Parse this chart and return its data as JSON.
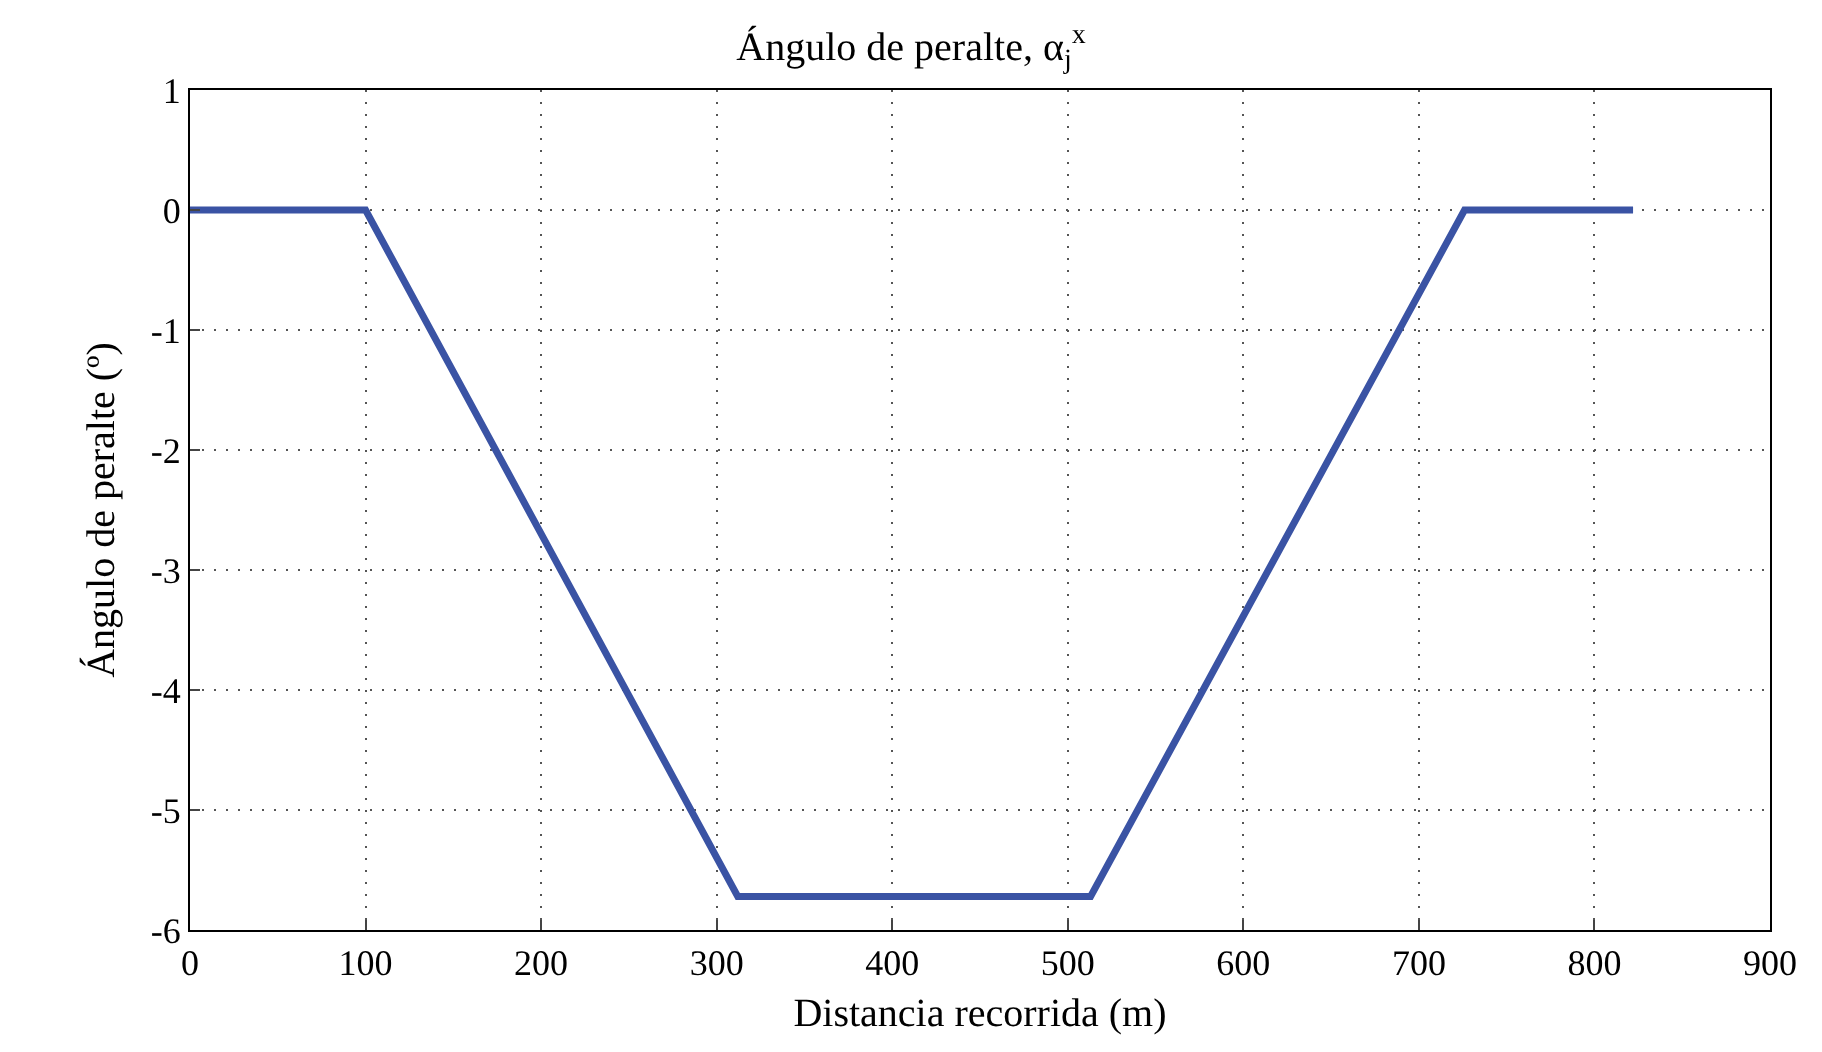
{
  "chart_data": {
    "type": "line",
    "title": "Ángulo de peralte, α$_{j}$$^{x}$",
    "xlabel": "Distancia recorrida (m)",
    "ylabel": "Ángulo de peralte (º)",
    "x": [
      0,
      100,
      312,
      513,
      726,
      822
    ],
    "series": [
      {
        "color": "#3a53a4",
        "values": [
          0,
          0,
          -5.72,
          -5.72,
          0,
          0
        ]
      }
    ],
    "xlim": [
      0,
      900
    ],
    "xticks": [
      0,
      100,
      200,
      300,
      400,
      500,
      600,
      700,
      800,
      900
    ],
    "ylim": [
      -6,
      1
    ],
    "yticks": [
      -6,
      -5,
      -4,
      -3,
      -2,
      -1,
      0,
      1
    ],
    "grid": true,
    "line_style": "solid",
    "marker": "none"
  }
}
